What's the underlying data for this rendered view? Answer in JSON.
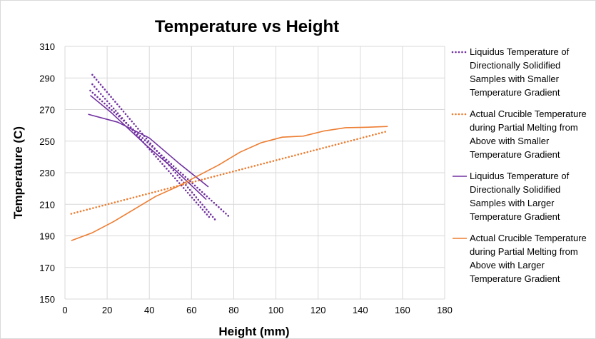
{
  "chart_data": {
    "type": "line",
    "title": "Temperature vs Height",
    "xlabel": "Height (mm)",
    "ylabel": "Temperature (C)",
    "xlim": [
      0,
      180
    ],
    "ylim": [
      150,
      310
    ],
    "xticks": [
      0,
      20,
      40,
      60,
      80,
      100,
      120,
      140,
      160,
      180
    ],
    "yticks": [
      150,
      170,
      190,
      210,
      230,
      250,
      270,
      290,
      310
    ],
    "grid": true,
    "legend_position": "right",
    "series": [
      {
        "name": "Liquidus Temperature of Directionally Solidified Samples with Smaller Temperature Gradient",
        "legend_lines": [
          "Liquidus Temperature of",
          "Directionally Solidified",
          "Samples with Smaller",
          "Temperature Gradient"
        ],
        "color": "#7030a0",
        "style": "dotted",
        "lines": [
          [
            [
              13,
              292
            ],
            [
              72,
              199
            ]
          ],
          [
            [
              13,
              286
            ],
            [
              69,
              201
            ]
          ],
          [
            [
              12,
              282
            ],
            [
              78,
              202
            ]
          ]
        ]
      },
      {
        "name": "Actual Crucible Temperature during Partial Melting from Above with Smaller Temperature Gradient",
        "legend_lines": [
          "Actual Crucible Temperature",
          "during Partial Melting from",
          "Above with Smaller",
          "Temperature Gradient"
        ],
        "color": "#ed7d31",
        "style": "dotted",
        "lines": [
          [
            [
              3,
              204
            ],
            [
              152,
              256
            ]
          ]
        ]
      },
      {
        "name": "Liquidus Temperature of Directionally Solidified Samples with Larger Temperature Gradient",
        "legend_lines": [
          "Liquidus Temperature of",
          "Directionally Solidified",
          "Samples with Larger",
          "Temperature Gradient"
        ],
        "color": "#7030a0",
        "style": "solid",
        "lines": [
          [
            [
              11,
              267
            ],
            [
              25,
              262
            ],
            [
              40,
              252
            ],
            [
              54,
              236
            ],
            [
              68,
              221
            ]
          ],
          [
            [
              12,
              279
            ],
            [
              22,
              268
            ],
            [
              38,
              248
            ],
            [
              52,
              232
            ],
            [
              67,
              213
            ]
          ]
        ]
      },
      {
        "name": "Actual Crucible Temperature during Partial Melting from Above with Larger Temperature Gradient",
        "legend_lines": [
          "Actual Crucible Temperature",
          "during Partial Melting from",
          "Above with Larger",
          "Temperature Gradient"
        ],
        "color": "#ed7d31",
        "style": "solid",
        "lines": [
          [
            [
              3,
              187
            ],
            [
              13,
              192
            ],
            [
              23,
              199
            ],
            [
              33,
              207
            ],
            [
              43,
              215
            ],
            [
              53,
              221
            ],
            [
              63,
              228
            ],
            [
              73,
              235
            ],
            [
              83,
              243
            ],
            [
              93,
              249
            ],
            [
              103,
              252.5
            ],
            [
              113,
              253.2
            ],
            [
              123,
              256.5
            ],
            [
              133,
              258.5
            ],
            [
              143,
              258.8
            ],
            [
              153,
              259.3
            ]
          ]
        ]
      }
    ]
  }
}
